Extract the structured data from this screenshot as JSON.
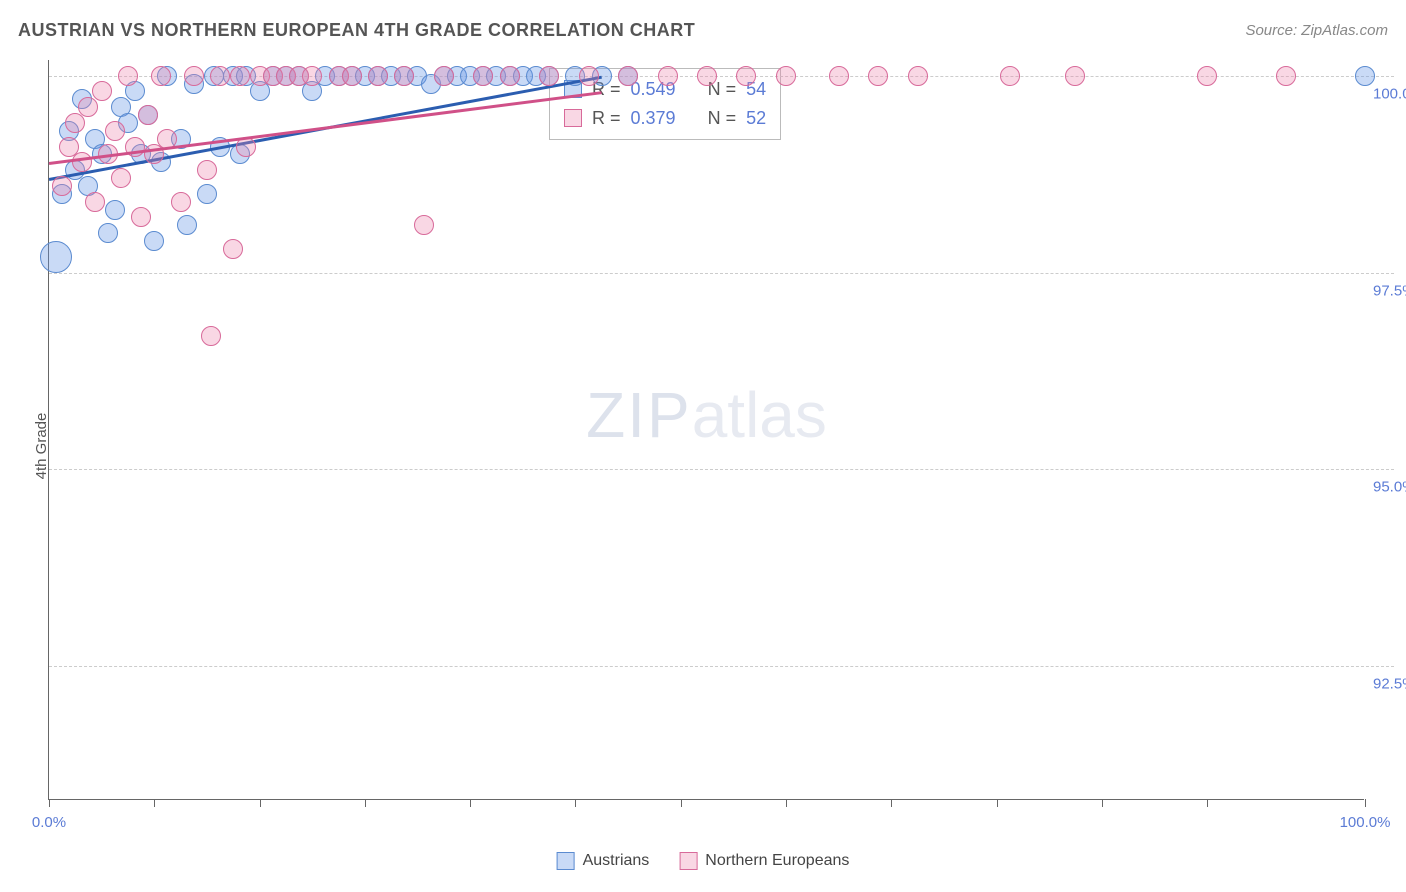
{
  "title": "AUSTRIAN VS NORTHERN EUROPEAN 4TH GRADE CORRELATION CHART",
  "source": "Source: ZipAtlas.com",
  "ylabel": "4th Grade",
  "watermark_zip": "ZIP",
  "watermark_atlas": "atlas",
  "chart": {
    "type": "scatter",
    "background_color": "#ffffff",
    "grid_color": "#cccccc",
    "axis_color": "#666666",
    "tick_label_color": "#5b7bd5",
    "xlim": [
      0,
      100
    ],
    "ylim": [
      90.8,
      100.2
    ],
    "x_ticks": [
      0,
      8,
      16,
      24,
      32,
      40,
      48,
      56,
      64,
      72,
      80,
      88,
      100
    ],
    "x_tick_labels": {
      "0": "0.0%",
      "100": "100.0%"
    },
    "y_gridlines": [
      92.5,
      95.0,
      97.5,
      100.0
    ],
    "y_tick_labels": {
      "92.5": "92.5%",
      "95.0": "95.0%",
      "97.5": "97.5%",
      "100.0": "100.0%"
    },
    "marker_radius": 10,
    "marker_opacity": 0.45,
    "series": [
      {
        "name": "Austrians",
        "color_fill": "rgba(100,150,230,0.35)",
        "color_stroke": "#5b8bd0",
        "r_label": "R =",
        "r_value": "0.549",
        "n_label": "N =",
        "n_value": "54",
        "trend": {
          "x1": 0,
          "y1": 98.7,
          "x2": 42,
          "y2": 100.0,
          "color": "#2b5db0"
        },
        "points": [
          [
            0.5,
            97.7,
            16
          ],
          [
            1,
            98.5,
            10
          ],
          [
            1.5,
            99.3,
            10
          ],
          [
            2,
            98.8,
            10
          ],
          [
            2.5,
            99.7,
            10
          ],
          [
            3,
            98.6,
            10
          ],
          [
            3.5,
            99.2,
            10
          ],
          [
            4,
            99.0,
            10
          ],
          [
            4.5,
            98.0,
            10
          ],
          [
            5,
            98.3,
            10
          ],
          [
            5.5,
            99.6,
            10
          ],
          [
            6,
            99.4,
            10
          ],
          [
            6.5,
            99.8,
            10
          ],
          [
            7,
            99.0,
            10
          ],
          [
            7.5,
            99.5,
            10
          ],
          [
            8,
            97.9,
            10
          ],
          [
            8.5,
            98.9,
            10
          ],
          [
            9,
            100.0,
            10
          ],
          [
            10,
            99.2,
            10
          ],
          [
            10.5,
            98.1,
            10
          ],
          [
            11,
            99.9,
            10
          ],
          [
            12,
            98.5,
            10
          ],
          [
            12.5,
            100.0,
            10
          ],
          [
            13,
            99.1,
            10
          ],
          [
            14,
            100.0,
            10
          ],
          [
            14.5,
            99.0,
            10
          ],
          [
            15,
            100.0,
            10
          ],
          [
            16,
            99.8,
            10
          ],
          [
            17,
            100.0,
            10
          ],
          [
            18,
            100.0,
            10
          ],
          [
            19,
            100.0,
            10
          ],
          [
            20,
            99.8,
            10
          ],
          [
            21,
            100.0,
            10
          ],
          [
            22,
            100.0,
            10
          ],
          [
            23,
            100.0,
            10
          ],
          [
            24,
            100.0,
            10
          ],
          [
            25,
            100.0,
            10
          ],
          [
            26,
            100.0,
            10
          ],
          [
            27,
            100.0,
            10
          ],
          [
            28,
            100.0,
            10
          ],
          [
            29,
            99.9,
            10
          ],
          [
            30,
            100.0,
            10
          ],
          [
            31,
            100.0,
            10
          ],
          [
            32,
            100.0,
            10
          ],
          [
            33,
            100.0,
            10
          ],
          [
            34,
            100.0,
            10
          ],
          [
            35,
            100.0,
            10
          ],
          [
            36,
            100.0,
            10
          ],
          [
            37,
            100.0,
            10
          ],
          [
            38,
            100.0,
            10
          ],
          [
            40,
            100.0,
            10
          ],
          [
            42,
            100.0,
            10
          ],
          [
            44,
            100.0,
            10
          ],
          [
            100,
            100.0,
            10
          ]
        ]
      },
      {
        "name": "Northern Europeans",
        "color_fill": "rgba(235,130,170,0.32)",
        "color_stroke": "#d86a9a",
        "r_label": "R =",
        "r_value": "0.379",
        "n_label": "N =",
        "n_value": "52",
        "trend": {
          "x1": 0,
          "y1": 98.9,
          "x2": 42,
          "y2": 99.8,
          "color": "#d05088"
        },
        "points": [
          [
            1,
            98.6,
            10
          ],
          [
            1.5,
            99.1,
            10
          ],
          [
            2,
            99.4,
            10
          ],
          [
            2.5,
            98.9,
            10
          ],
          [
            3,
            99.6,
            10
          ],
          [
            3.5,
            98.4,
            10
          ],
          [
            4,
            99.8,
            10
          ],
          [
            4.5,
            99.0,
            10
          ],
          [
            5,
            99.3,
            10
          ],
          [
            5.5,
            98.7,
            10
          ],
          [
            6,
            100.0,
            10
          ],
          [
            6.5,
            99.1,
            10
          ],
          [
            7,
            98.2,
            10
          ],
          [
            7.5,
            99.5,
            10
          ],
          [
            8,
            99.0,
            10
          ],
          [
            8.5,
            100.0,
            10
          ],
          [
            9,
            99.2,
            10
          ],
          [
            10,
            98.4,
            10
          ],
          [
            11,
            100.0,
            10
          ],
          [
            12,
            98.8,
            10
          ],
          [
            12.3,
            96.7,
            10
          ],
          [
            13,
            100.0,
            10
          ],
          [
            14,
            97.8,
            10
          ],
          [
            14.5,
            100.0,
            10
          ],
          [
            15,
            99.1,
            10
          ],
          [
            16,
            100.0,
            10
          ],
          [
            17,
            100.0,
            10
          ],
          [
            18,
            100.0,
            10
          ],
          [
            19,
            100.0,
            10
          ],
          [
            20,
            100.0,
            10
          ],
          [
            22,
            100.0,
            10
          ],
          [
            23,
            100.0,
            10
          ],
          [
            25,
            100.0,
            10
          ],
          [
            27,
            100.0,
            10
          ],
          [
            28.5,
            98.1,
            10
          ],
          [
            30,
            100.0,
            10
          ],
          [
            33,
            100.0,
            10
          ],
          [
            35,
            100.0,
            10
          ],
          [
            38,
            100.0,
            10
          ],
          [
            41,
            100.0,
            10
          ],
          [
            44,
            100.0,
            10
          ],
          [
            47,
            100.0,
            10
          ],
          [
            50,
            100.0,
            10
          ],
          [
            53,
            100.0,
            10
          ],
          [
            56,
            100.0,
            10
          ],
          [
            60,
            100.0,
            10
          ],
          [
            63,
            100.0,
            10
          ],
          [
            66,
            100.0,
            10
          ],
          [
            73,
            100.0,
            10
          ],
          [
            78,
            100.0,
            10
          ],
          [
            88,
            100.0,
            10
          ],
          [
            94,
            100.0,
            10
          ]
        ]
      }
    ],
    "bottom_legend": [
      {
        "label": "Austrians",
        "fill": "rgba(100,150,230,0.35)",
        "stroke": "#5b8bd0"
      },
      {
        "label": "Northern Europeans",
        "fill": "rgba(235,130,170,0.32)",
        "stroke": "#d86a9a"
      }
    ]
  }
}
